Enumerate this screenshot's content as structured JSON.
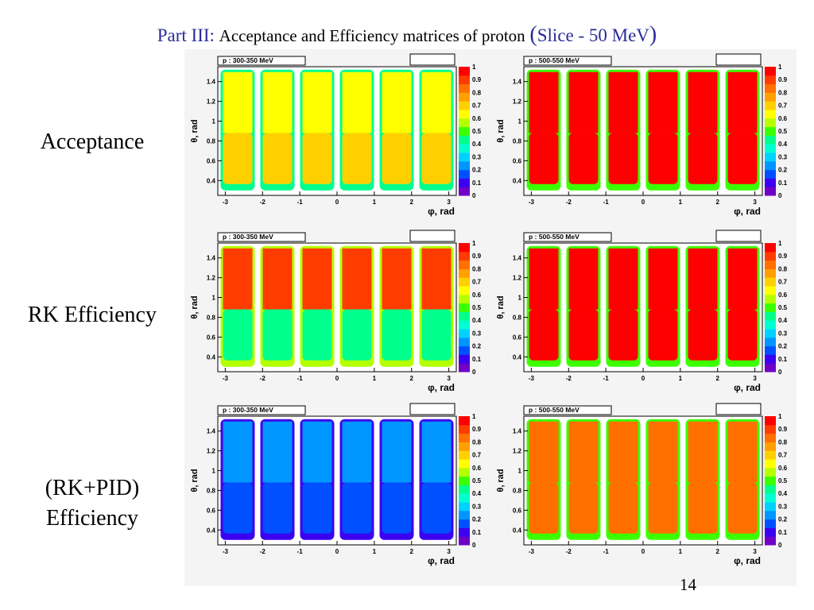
{
  "header": {
    "part": "Part III:",
    "text": "Acceptance and Efficiency matrices of proton",
    "paren_open": "(",
    "slice": "Slice - 50 MeV",
    "paren_close": ")"
  },
  "rows": [
    {
      "label": "Acceptance"
    },
    {
      "label": "RK Efficiency"
    },
    {
      "label": "(RK+PID)",
      "label2": "Efficiency"
    }
  ],
  "page_number": "14",
  "colors": {
    "title_blue": "#2a2a9a",
    "palette": [
      "#7000c8",
      "#3c00f0",
      "#0050ff",
      "#0096ff",
      "#00d2ff",
      "#00ffd2",
      "#00ff8c",
      "#3cff00",
      "#b4ff00",
      "#ffff00",
      "#ffd000",
      "#ffa000",
      "#ff7000",
      "#ff3c00",
      "#ff0000"
    ]
  },
  "chart_data": [
    {
      "type": "heatmap",
      "title": "p : 300-350 MeV",
      "xlabel": "φ, rad",
      "ylabel": "θ, rad",
      "xlim": [
        -3.2,
        3.2
      ],
      "ylim": [
        0.25,
        1.55
      ],
      "x_ticks": [
        "-3",
        "-2",
        "-1",
        "0",
        "1",
        "2",
        "3"
      ],
      "y_ticks": [
        "0.4",
        "0.6",
        "0.8",
        "1",
        "1.2",
        "1.4"
      ],
      "z_ticks": [
        "0",
        "0.1",
        "0.2",
        "0.3",
        "0.4",
        "0.5",
        "0.6",
        "0.7",
        "0.8",
        "0.9",
        "1"
      ],
      "zlim": [
        0,
        1
      ],
      "sectors": 6,
      "sector_value_upper": 0.65,
      "sector_value_lower": 0.72,
      "border_value": 0.4
    },
    {
      "type": "heatmap",
      "title": "p : 500-550 MeV",
      "xlabel": "φ, rad",
      "ylabel": "θ, rad",
      "xlim": [
        -3.2,
        3.2
      ],
      "ylim": [
        0.25,
        1.55
      ],
      "x_ticks": [
        "-3",
        "-2",
        "-1",
        "0",
        "1",
        "2",
        "3"
      ],
      "y_ticks": [
        "0.4",
        "0.6",
        "0.8",
        "1",
        "1.2",
        "1.4"
      ],
      "z_ticks": [
        "0",
        "0.1",
        "0.2",
        "0.3",
        "0.4",
        "0.5",
        "0.6",
        "0.7",
        "0.8",
        "0.9",
        "1"
      ],
      "zlim": [
        0,
        1
      ],
      "sectors": 6,
      "sector_value_upper": 0.97,
      "sector_value_lower": 0.97,
      "border_value": 0.5
    },
    {
      "type": "heatmap",
      "title": "p : 300-350 MeV",
      "xlabel": "φ, rad",
      "ylabel": "θ, rad",
      "xlim": [
        -3.2,
        3.2
      ],
      "ylim": [
        0.25,
        1.55
      ],
      "x_ticks": [
        "-3",
        "-2",
        "-1",
        "0",
        "1",
        "2",
        "3"
      ],
      "y_ticks": [
        "0.4",
        "0.6",
        "0.8",
        "1",
        "1.2",
        "1.4"
      ],
      "z_ticks": [
        "0",
        "0.1",
        "0.2",
        "0.3",
        "0.4",
        "0.5",
        "0.6",
        "0.7",
        "0.8",
        "0.9",
        "1"
      ],
      "zlim": [
        0,
        1
      ],
      "sectors": 6,
      "sector_value_upper": 0.92,
      "sector_value_lower": 0.4,
      "border_value": 0.6
    },
    {
      "type": "heatmap",
      "title": "p : 500-550 MeV",
      "xlabel": "φ, rad",
      "ylabel": "θ, rad",
      "xlim": [
        -3.2,
        3.2
      ],
      "ylim": [
        0.25,
        1.55
      ],
      "x_ticks": [
        "-3",
        "-2",
        "-1",
        "0",
        "1",
        "2",
        "3"
      ],
      "y_ticks": [
        "0.4",
        "0.6",
        "0.8",
        "1",
        "1.2",
        "1.4"
      ],
      "z_ticks": [
        "0",
        "0.1",
        "0.2",
        "0.3",
        "0.4",
        "0.5",
        "0.6",
        "0.7",
        "0.8",
        "0.9",
        "1"
      ],
      "zlim": [
        0,
        1
      ],
      "sectors": 6,
      "sector_value_upper": 0.97,
      "sector_value_lower": 0.97,
      "border_value": 0.5
    },
    {
      "type": "heatmap",
      "title": "p : 300-350 MeV",
      "xlabel": "φ, rad",
      "ylabel": "θ, rad",
      "xlim": [
        -3.2,
        3.2
      ],
      "ylim": [
        0.25,
        1.55
      ],
      "x_ticks": [
        "-3",
        "-2",
        "-1",
        "0",
        "1",
        "2",
        "3"
      ],
      "y_ticks": [
        "0.4",
        "0.6",
        "0.8",
        "1",
        "1.2",
        "1.4"
      ],
      "z_ticks": [
        "0",
        "0.1",
        "0.2",
        "0.3",
        "0.4",
        "0.5",
        "0.6",
        "0.7",
        "0.8",
        "0.9",
        "1"
      ],
      "zlim": [
        0,
        1
      ],
      "sectors": 6,
      "sector_value_upper": 0.2,
      "sector_value_lower": 0.15,
      "border_value": 0.05
    },
    {
      "type": "heatmap",
      "title": "p : 500-550 MeV",
      "xlabel": "φ, rad",
      "ylabel": "θ, rad",
      "xlim": [
        -3.2,
        3.2
      ],
      "ylim": [
        0.25,
        1.55
      ],
      "x_ticks": [
        "-3",
        "-2",
        "-1",
        "0",
        "1",
        "2",
        "3"
      ],
      "y_ticks": [
        "0.4",
        "0.6",
        "0.8",
        "1",
        "1.2",
        "1.4"
      ],
      "z_ticks": [
        "0",
        "0.1",
        "0.2",
        "0.3",
        "0.4",
        "0.5",
        "0.6",
        "0.7",
        "0.8",
        "0.9",
        "1"
      ],
      "zlim": [
        0,
        1
      ],
      "sectors": 6,
      "sector_value_upper": 0.85,
      "sector_value_lower": 0.85,
      "border_value": 0.5
    }
  ]
}
